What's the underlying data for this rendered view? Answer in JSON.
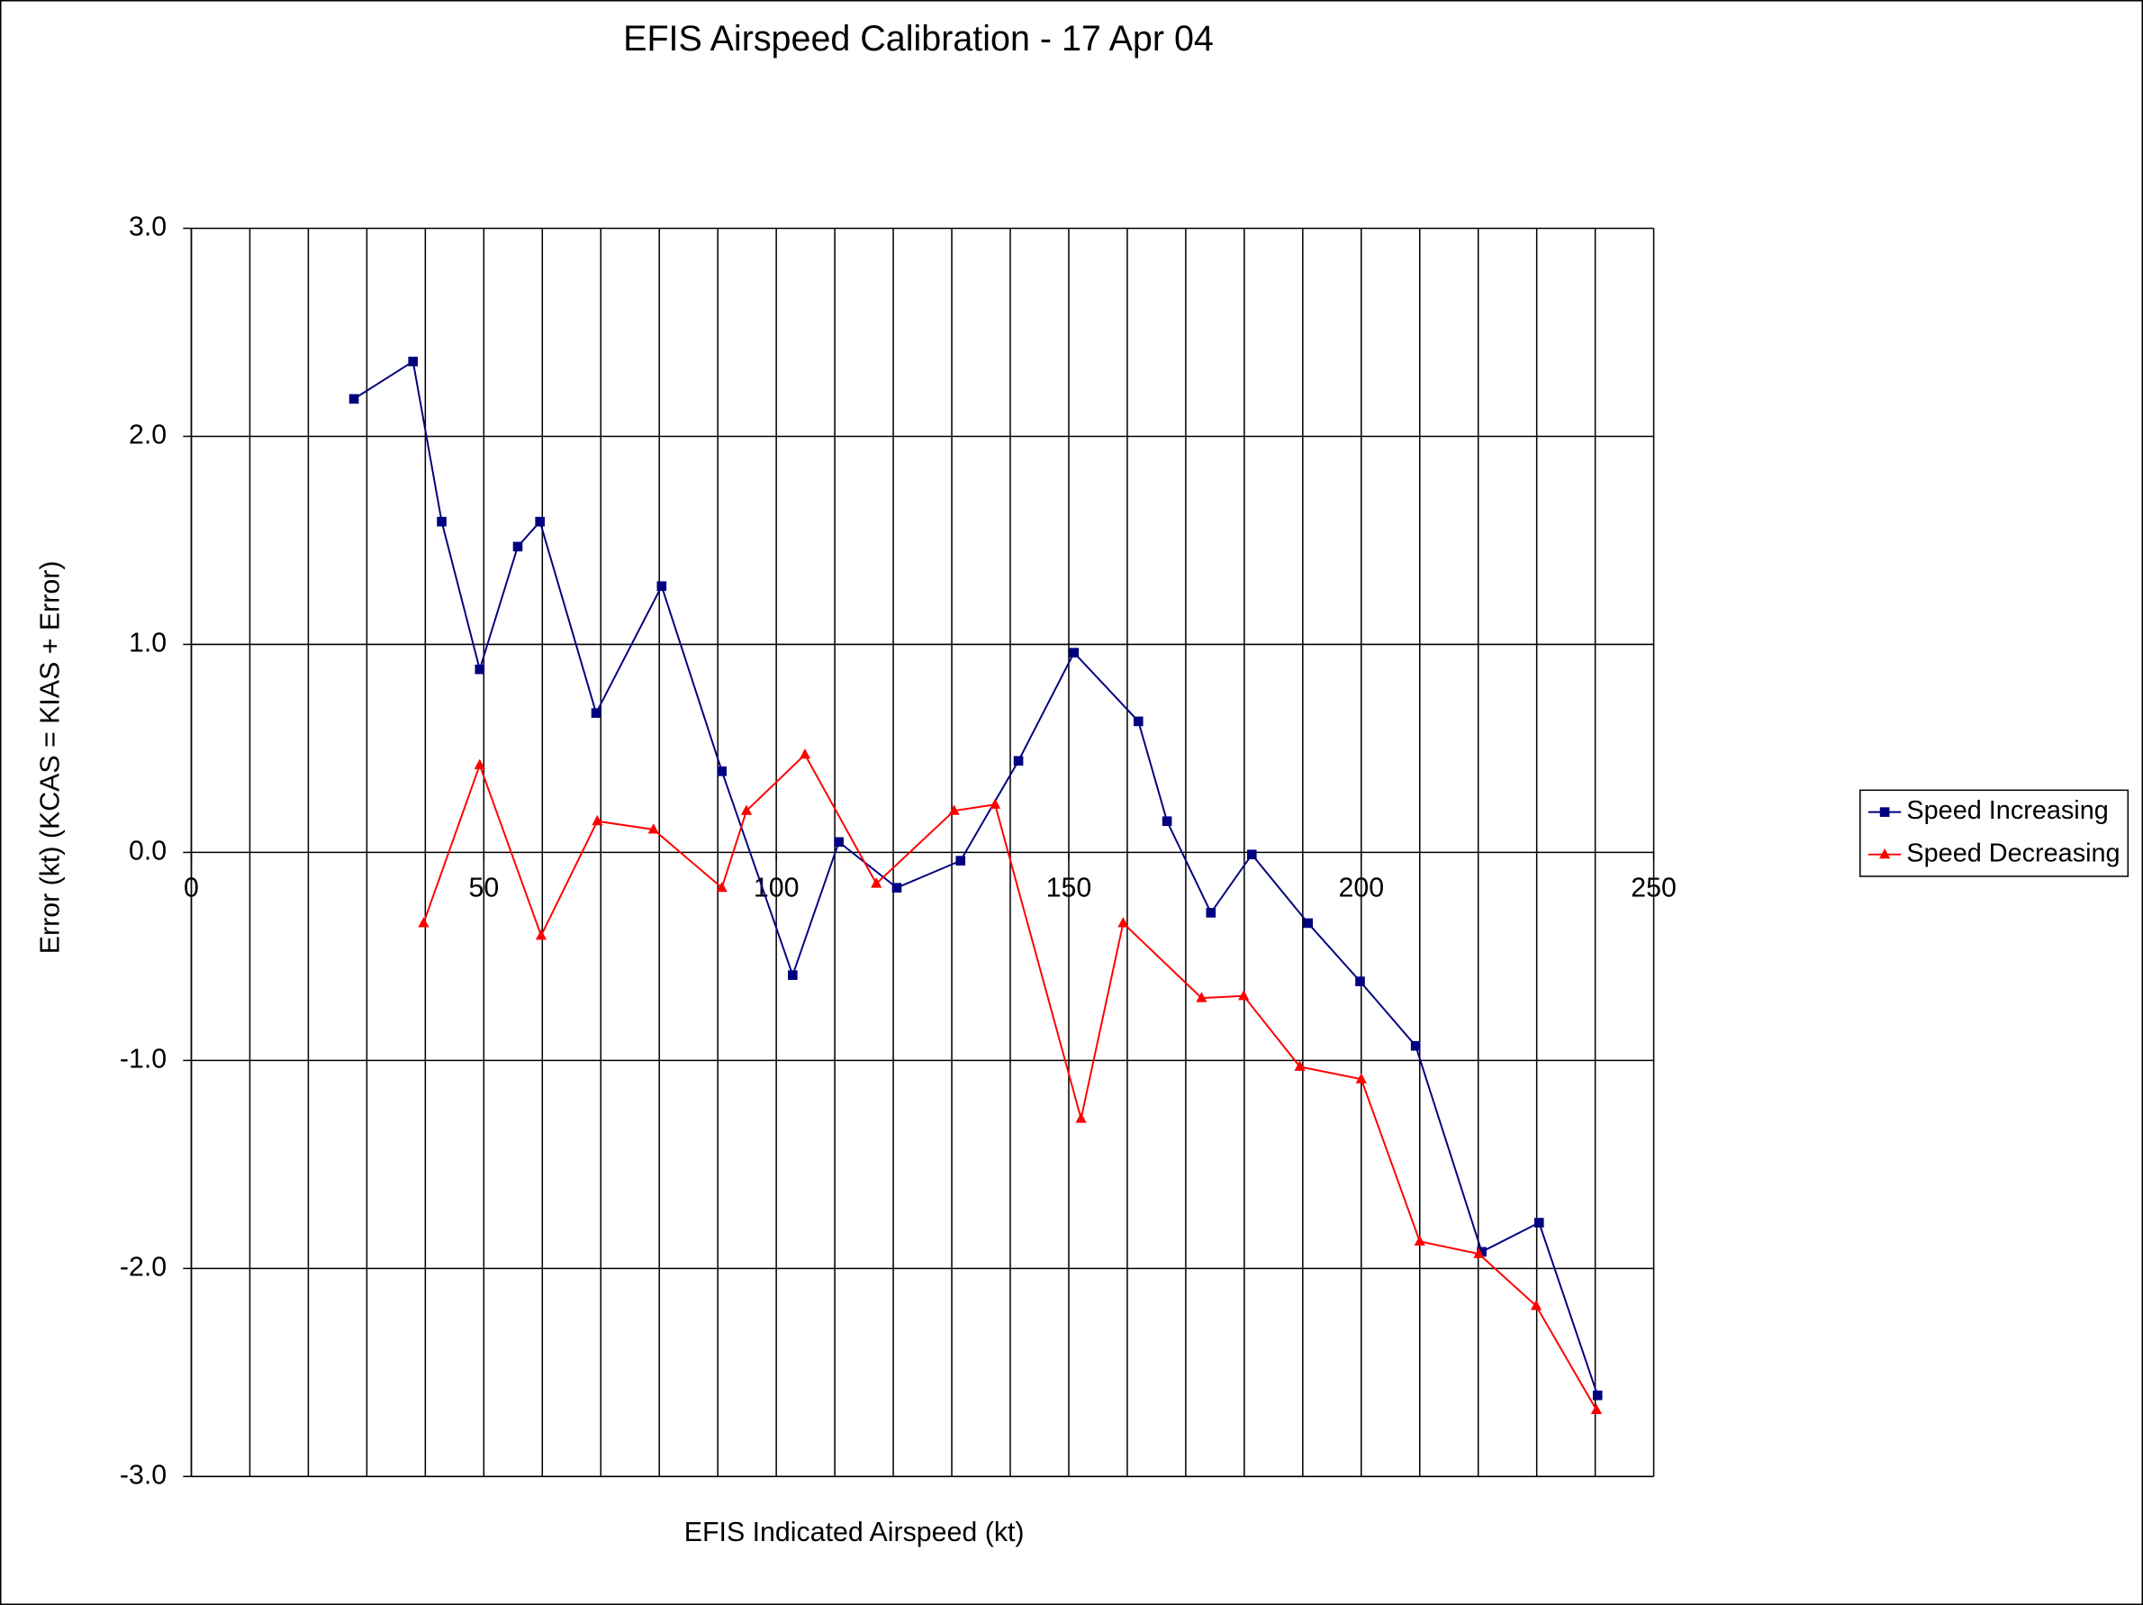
{
  "chart_data": {
    "type": "line",
    "title": "EFIS Airspeed Calibration - 17 Apr 04",
    "x_label": "EFIS Indicated Airspeed (kt)",
    "y_label": "Error (kt) (KCAS = KIAS + Error)",
    "xlim": [
      0,
      250
    ],
    "xticks": [
      0,
      50,
      100,
      150,
      200,
      250
    ],
    "x_gridlines": [
      0,
      10,
      20,
      30,
      40,
      50,
      60,
      70,
      80,
      90,
      100,
      110,
      120,
      130,
      140,
      150,
      160,
      170,
      180,
      190,
      200,
      210,
      220,
      230,
      240,
      250
    ],
    "ylim": [
      -3,
      3
    ],
    "yticks": [
      {
        "value": 3,
        "label": "3.0"
      },
      {
        "value": 2,
        "label": "2.0"
      },
      {
        "value": 1,
        "label": "1.0"
      },
      {
        "value": 0,
        "label": "0.0"
      },
      {
        "value": -1,
        "label": "-1.0"
      },
      {
        "value": -2,
        "label": "-2.0"
      },
      {
        "value": -3,
        "label": "-3.0"
      }
    ],
    "grid": true,
    "legend": "right",
    "series": [
      {
        "name": "Speed Increasing",
        "color": "#000080",
        "marker": "square",
        "x": [
          27.8,
          37.9,
          42.8,
          49.3,
          55.8,
          59.6,
          69.2,
          80.4,
          90.7,
          102.8,
          110.7,
          120.6,
          131.5,
          141.4,
          150.9,
          161.9,
          166.8,
          174.3,
          181.3,
          190.9,
          199.8,
          209.3,
          220.6,
          230.4,
          240.4
        ],
        "values": [
          2.18,
          2.36,
          1.59,
          0.88,
          1.47,
          1.59,
          0.67,
          1.28,
          0.39,
          -0.59,
          0.05,
          -0.17,
          -0.04,
          0.44,
          0.96,
          0.63,
          0.15,
          -0.29,
          -0.01,
          -0.34,
          -0.62,
          -0.93,
          -1.92,
          -1.78,
          -2.61
        ]
      },
      {
        "name": "Speed Decreasing",
        "color": "#ff0000",
        "marker": "triangle",
        "x": [
          39.7,
          49.3,
          59.8,
          69.4,
          79.0,
          90.7,
          94.9,
          104.9,
          117.1,
          130.4,
          137.4,
          152.1,
          159.3,
          172.7,
          179.9,
          189.5,
          200.0,
          210.0,
          220.1,
          229.9,
          240.2
        ],
        "values": [
          -0.34,
          0.42,
          -0.4,
          0.15,
          0.11,
          -0.17,
          0.2,
          0.47,
          -0.15,
          0.2,
          0.23,
          -1.28,
          -0.34,
          -0.7,
          -0.69,
          -1.03,
          -1.09,
          -1.87,
          -1.93,
          -2.18,
          -2.68
        ]
      }
    ]
  }
}
